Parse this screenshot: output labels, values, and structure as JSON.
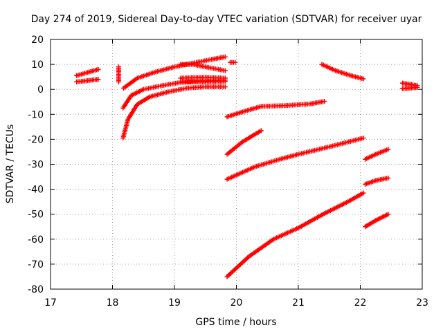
{
  "chart_data": {
    "type": "scatter",
    "marker": "plus",
    "title": "Day 274 of 2019, Sidereal Day-to-day VTEC variation (SDTVAR) for receiver uyar",
    "xlabel": "GPS time / hours",
    "ylabel": "SDTVAR / TECUs",
    "xlim": [
      17,
      23
    ],
    "ylim": [
      -80,
      20
    ],
    "xticks": [
      17,
      18,
      19,
      20,
      21,
      22,
      23
    ],
    "yticks": [
      -80,
      -70,
      -60,
      -50,
      -40,
      -30,
      -20,
      -10,
      0,
      10,
      20
    ],
    "grid": true,
    "series_color": "#ff0000",
    "series": [
      {
        "segments": [
          {
            "x": [
              17.42,
              17.6,
              17.77
            ],
            "y": [
              5.5,
              6.8,
              8.0
            ]
          },
          {
            "x": [
              17.42,
              17.6,
              17.77
            ],
            "y": [
              3.0,
              3.5,
              4.0
            ]
          },
          {
            "x": [
              18.1,
              18.1,
              18.1
            ],
            "y": [
              9.0,
              6.0,
              3.0
            ]
          },
          {
            "x": [
              18.18,
              18.4,
              18.7,
              19.0,
              19.3,
              19.6,
              19.82
            ],
            "y": [
              0.5,
              4.5,
              7.0,
              9.0,
              10.5,
              12.0,
              13.0
            ]
          },
          {
            "x": [
              19.1,
              19.3,
              19.5,
              19.82
            ],
            "y": [
              10.0,
              10.0,
              9.0,
              7.5
            ]
          },
          {
            "x": [
              19.1,
              19.3,
              19.5,
              19.82
            ],
            "y": [
              4.5,
              4.7,
              4.8,
              4.5
            ]
          },
          {
            "x": [
              19.1,
              19.3,
              19.5,
              19.82
            ],
            "y": [
              3.0,
              3.3,
              3.5,
              3.7
            ]
          },
          {
            "x": [
              18.17,
              18.3,
              18.5,
              18.8,
              19.1,
              19.4,
              19.82
            ],
            "y": [
              -7.5,
              -2.5,
              0.0,
              1.5,
              2.8,
              3.0,
              3.2
            ]
          },
          {
            "x": [
              18.17,
              18.25,
              18.4,
              18.6,
              18.9,
              19.2,
              19.5,
              19.82
            ],
            "y": [
              -19.5,
              -12.0,
              -6.0,
              -3.0,
              -1.0,
              0.5,
              1.0,
              1.0
            ]
          },
          {
            "x": [
              19.9,
              19.98
            ],
            "y": [
              10.8,
              10.8
            ]
          },
          {
            "x": [
              19.85,
              20.1,
              20.4,
              20.8,
              21.2,
              21.42
            ],
            "y": [
              -11.0,
              -9.0,
              -6.8,
              -6.5,
              -5.8,
              -4.8
            ]
          },
          {
            "x": [
              19.85,
              20.1,
              20.4
            ],
            "y": [
              -26.0,
              -21.0,
              -16.5
            ]
          },
          {
            "x": [
              19.85,
              20.3,
              20.7,
              21.0,
              21.5,
              22.05
            ],
            "y": [
              -36.0,
              -31.0,
              -28.0,
              -26.0,
              -23.0,
              -19.5
            ]
          },
          {
            "x": [
              19.85,
              20.2,
              20.6,
              21.0,
              21.4,
              21.8,
              22.05
            ],
            "y": [
              -75.0,
              -67.0,
              -60.0,
              -55.5,
              -50.0,
              -45.0,
              -41.5
            ]
          },
          {
            "x": [
              21.38,
              21.6,
              21.85,
              22.05
            ],
            "y": [
              10.0,
              7.5,
              5.5,
              4.2
            ]
          },
          {
            "x": [
              22.08,
              22.25,
              22.45
            ],
            "y": [
              -28.0,
              -26.0,
              -24.0
            ]
          },
          {
            "x": [
              22.08,
              22.25,
              22.45
            ],
            "y": [
              -38.0,
              -36.5,
              -35.5
            ]
          },
          {
            "x": [
              22.08,
              22.25,
              22.45
            ],
            "y": [
              -55.0,
              -52.5,
              -50.0
            ]
          },
          {
            "x": [
              22.68,
              22.8,
              22.92
            ],
            "y": [
              2.5,
              2.0,
              1.5
            ]
          },
          {
            "x": [
              22.68,
              22.8,
              22.92
            ],
            "y": [
              0.3,
              0.5,
              0.8
            ]
          }
        ]
      }
    ]
  }
}
